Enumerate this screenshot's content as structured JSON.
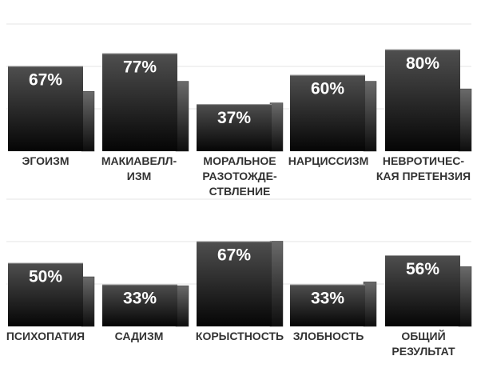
{
  "chart_data": [
    {
      "type": "bar",
      "categories": [
        [
          "ЭГОИЗМ"
        ],
        [
          "МАКИАВЕЛЛ-",
          "ИЗМ"
        ],
        [
          "МОРАЛЬНОЕ",
          "РАЗОТОЖДЕ-",
          "СТВЛЕНИЕ"
        ],
        [
          "НАРЦИССИЗМ"
        ],
        [
          "НЕВРОТИЧЕС-",
          "КАЯ ПРЕТЕНЗИЯ"
        ]
      ],
      "series": [
        {
          "values": [
            67,
            77,
            37,
            60,
            80
          ]
        },
        {
          "values": [
            47,
            55,
            38,
            55,
            49
          ]
        }
      ],
      "value_labels": [
        "67%",
        "77%",
        "37%",
        "60%",
        "80%"
      ],
      "ylim": [
        0,
        100
      ],
      "grid": true,
      "colors": {
        "primary_top": "#4f4f4f",
        "primary_bottom": "#050505",
        "secondary_top": "#6a6a6a",
        "secondary_bottom": "#0d0d0d",
        "grid": "#e6e6e6"
      }
    },
    {
      "type": "bar",
      "categories": [
        [
          "ПСИХОПАТИЯ"
        ],
        [
          "САДИЗМ"
        ],
        [
          "КОРЫСТНОСТЬ"
        ],
        [
          "ЗЛОБНОСТЬ"
        ],
        [
          "ОБЩИЙ",
          "РЕЗУЛЬТАТ"
        ]
      ],
      "series": [
        {
          "values": [
            50,
            33,
            67,
            33,
            56
          ]
        },
        {
          "values": [
            39,
            32,
            67,
            35,
            47
          ]
        }
      ],
      "value_labels": [
        "50%",
        "33%",
        "67%",
        "33%",
        "56%"
      ],
      "ylim": [
        0,
        100
      ],
      "grid": true,
      "colors": {
        "primary_top": "#4f4f4f",
        "primary_bottom": "#050505",
        "secondary_top": "#6a6a6a",
        "secondary_bottom": "#0d0d0d",
        "grid": "#e6e6e6"
      }
    }
  ]
}
